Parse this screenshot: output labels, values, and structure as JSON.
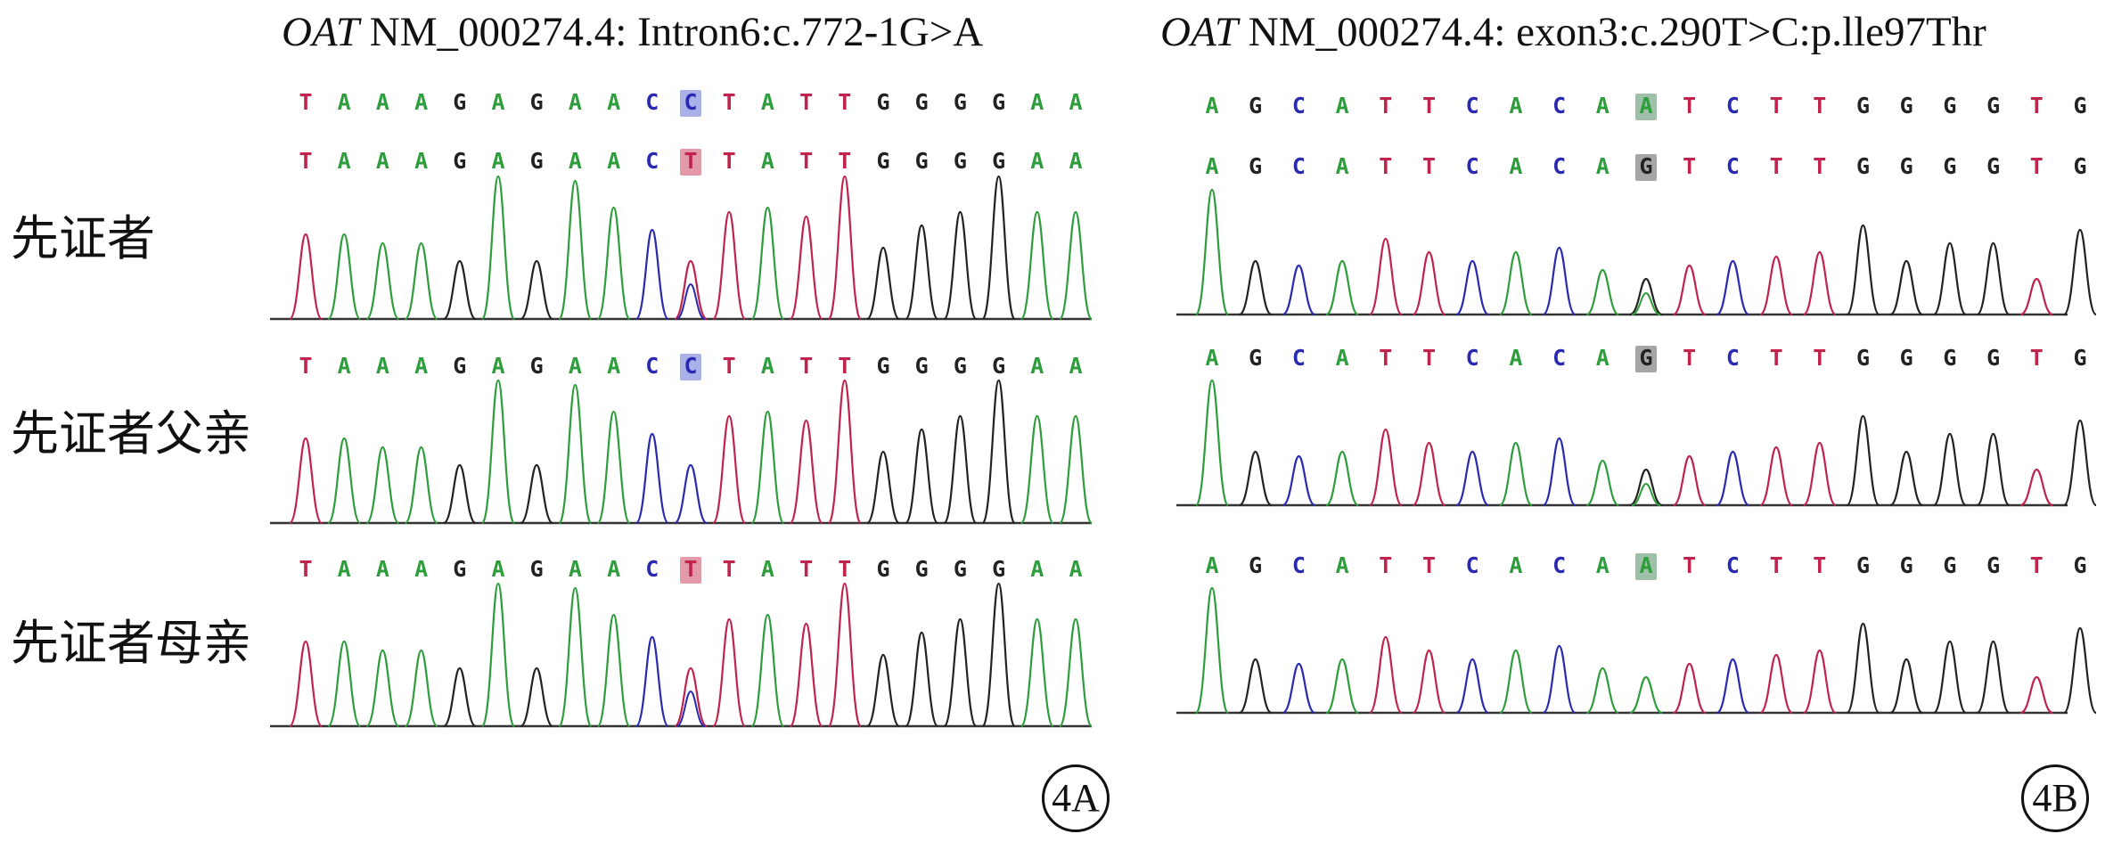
{
  "panel_a": {
    "title_gene": "OAT",
    "title_rest": " NM_000274.4: Intron6:c.772-1G>A",
    "tag": "4A",
    "ref_sequence": "TAAAGAGAACCTATTGGGGAA",
    "ref_highlight": 10,
    "rows": [
      {
        "label": "先证者",
        "sequence": "TAAAGAGAACTTATTGGGGAA",
        "highlight": 10
      },
      {
        "label": "先证者父亲",
        "sequence": "TAAAGAGAACCTATTGGGGAA",
        "highlight": 10
      },
      {
        "label": "先证者母亲",
        "sequence": "TAAAGAGAACTTATTGGGGAA",
        "highlight": 10
      }
    ]
  },
  "panel_b": {
    "title_gene": "OAT",
    "title_rest": " NM_000274.4: exon3:c.290T>C:p.lle97Thr",
    "tag": "4B",
    "ref_sequence": "AGCATTCACAATCTTGGGGTG",
    "ref_highlight": 10,
    "rows": [
      {
        "sequence": "AGCATTCACAGTCTTGGGGTG",
        "highlight": 10
      },
      {
        "sequence": "AGCATTCACAGTCTTGGGGTG",
        "highlight": 10
      },
      {
        "sequence": "AGCATTCACAATCTTGGGGTG",
        "highlight": 10
      }
    ]
  },
  "base_colors": {
    "A": "#2e9d3c",
    "G": "#222222",
    "C": "#2a2ab0",
    "T": "#c0244c"
  },
  "highlight_colors": {
    "C": "#aab0e8",
    "T": "#e39aa8",
    "G": "#a6a6a6",
    "A": "#9fbfa8"
  }
}
